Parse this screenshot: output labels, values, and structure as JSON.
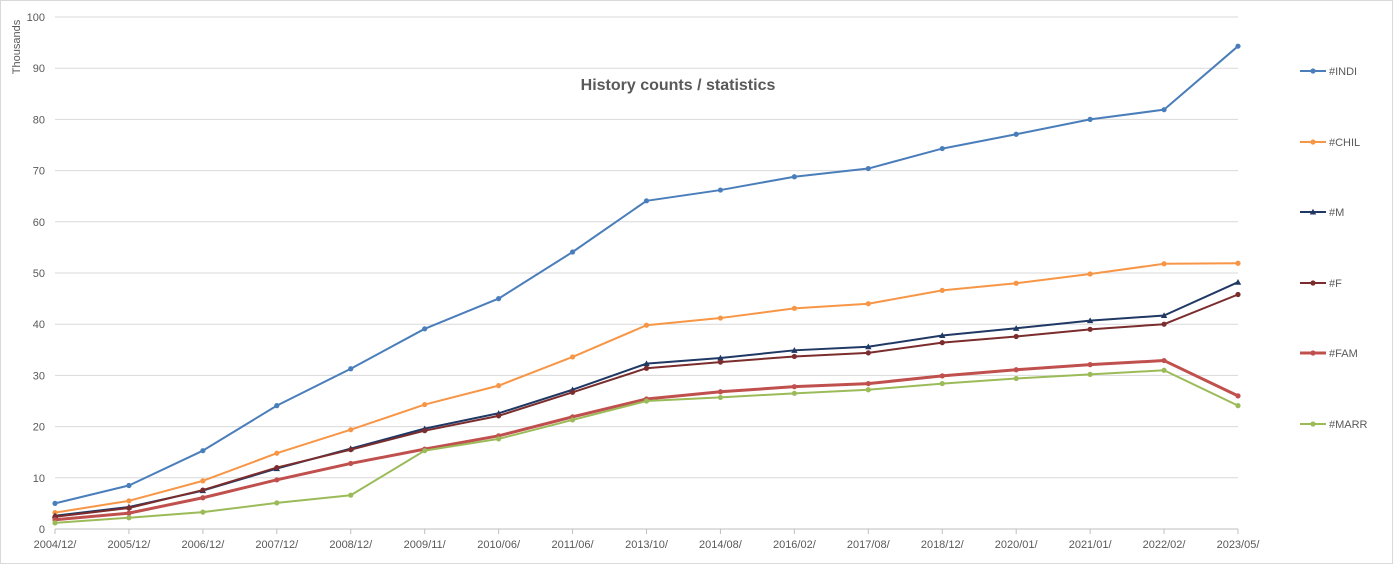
{
  "chart_data": {
    "type": "line",
    "title": "History counts / statistics",
    "xlabel": "",
    "ylabel": "Thousands",
    "ylim": [
      0,
      100
    ],
    "yticks": [
      0,
      10,
      20,
      30,
      40,
      50,
      60,
      70,
      80,
      90,
      100
    ],
    "grid": true,
    "legend_position": "right",
    "categories": [
      "2004/12/",
      "2005/12/",
      "2006/12/",
      "2007/12/",
      "2008/12/",
      "2009/11/",
      "2010/06/",
      "2011/06/",
      "2013/10/",
      "2014/08/",
      "2016/02/",
      "2017/08/",
      "2018/12/",
      "2020/01/",
      "2021/01/",
      "2022/02/",
      "2023/05/"
    ],
    "series": [
      {
        "name": "#INDI",
        "color": "#4a7ebb",
        "marker": "circle",
        "values": [
          5.0,
          8.5,
          15.3,
          24.1,
          31.3,
          39.1,
          45.0,
          54.1,
          64.1,
          66.2,
          68.8,
          70.4,
          74.3,
          77.1,
          80.0,
          81.9,
          94.3
        ]
      },
      {
        "name": "#CHIL",
        "color": "#f79646",
        "marker": "circle",
        "values": [
          3.2,
          5.5,
          9.4,
          14.8,
          19.4,
          24.3,
          28.0,
          33.6,
          39.8,
          41.2,
          43.1,
          44.0,
          46.6,
          48.0,
          49.8,
          51.8,
          51.9
        ]
      },
      {
        "name": "#M",
        "color": "#1f3864",
        "marker": "triangle",
        "values": [
          2.6,
          4.3,
          7.5,
          11.8,
          15.7,
          19.6,
          22.6,
          27.2,
          32.3,
          33.4,
          34.9,
          35.6,
          37.8,
          39.2,
          40.7,
          41.7,
          48.2
        ]
      },
      {
        "name": "#F",
        "color": "#7b2c2c",
        "marker": "circle",
        "values": [
          2.4,
          4.1,
          7.6,
          12.0,
          15.5,
          19.2,
          22.1,
          26.7,
          31.4,
          32.6,
          33.7,
          34.4,
          36.4,
          37.6,
          39.0,
          40.0,
          45.8
        ]
      },
      {
        "name": "#FAM",
        "color": "#c0504d",
        "marker": "circle",
        "values": [
          1.8,
          3.1,
          6.1,
          9.6,
          12.8,
          15.6,
          18.2,
          21.9,
          25.4,
          26.8,
          27.8,
          28.4,
          29.9,
          31.1,
          32.1,
          32.9,
          26.0
        ]
      },
      {
        "name": "#MARR",
        "color": "#9bbb59",
        "marker": "circle",
        "values": [
          1.2,
          2.2,
          3.3,
          5.1,
          6.6,
          15.3,
          17.6,
          21.3,
          25.0,
          25.7,
          26.5,
          27.2,
          28.4,
          29.4,
          30.2,
          31.0,
          24.1
        ]
      }
    ]
  }
}
